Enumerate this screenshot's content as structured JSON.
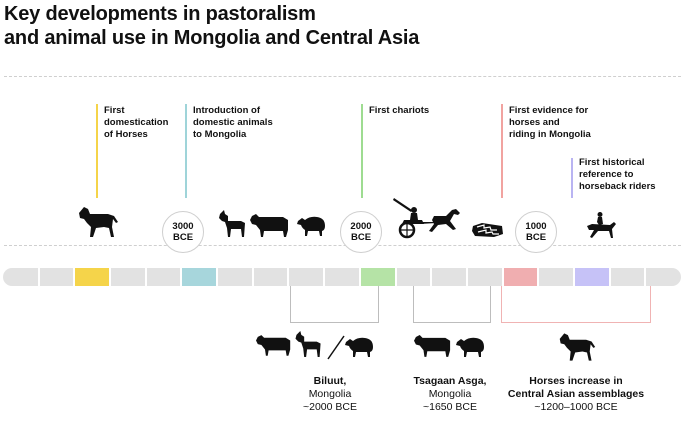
{
  "title": {
    "line1": "Key developments in pastoralism",
    "line2": "and animal use in Mongolia and Central Asia"
  },
  "annotations": [
    {
      "lines": [
        "First",
        "domestication",
        "of Horses"
      ],
      "color": "#f5d44a"
    },
    {
      "lines": [
        "Introduction of",
        "domestic animals",
        "to Mongolia"
      ],
      "color": "#9fd4d9"
    },
    {
      "lines": [
        "First chariots"
      ],
      "color": "#9edc91"
    },
    {
      "lines": [
        "First evidence for",
        "horses and",
        "riding in Mongolia"
      ],
      "color": "#f1a3a0"
    },
    {
      "lines": [
        "First historical",
        "reference to",
        "horseback riders"
      ],
      "color": "#b9b4f2"
    }
  ],
  "date_markers": [
    {
      "value": "3000",
      "unit": "BCE"
    },
    {
      "value": "2000",
      "unit": "BCE"
    },
    {
      "value": "1000",
      "unit": "BCE"
    }
  ],
  "timeline": {
    "segment_count": 19,
    "highlights": [
      {
        "index": 2,
        "color": "#f5d44a"
      },
      {
        "index": 5,
        "color": "#a7d6dc"
      },
      {
        "index": 10,
        "color": "#b5e3a6"
      },
      {
        "index": 14,
        "color": "#f0aeb0"
      },
      {
        "index": 16,
        "color": "#c6c2f7"
      }
    ]
  },
  "sites": [
    {
      "name": "Biluut,",
      "region": "Mongolia",
      "date": "~2000 BCE"
    },
    {
      "name": "Tsagaan Asga,",
      "region": "Mongolia",
      "date": "~1650 BCE"
    },
    {
      "name": "Horses increase in",
      "region": "Central Asian assemblages",
      "date": "~1200–1000 BCE"
    }
  ],
  "icons": {
    "upper": [
      "horse",
      "goat",
      "cow",
      "sheep",
      "chariot-with-horse",
      "deer-stone",
      "horse-rider"
    ],
    "lower": [
      "cow",
      "goat",
      "staff",
      "sheep",
      "cow",
      "sheep",
      "horse"
    ]
  }
}
